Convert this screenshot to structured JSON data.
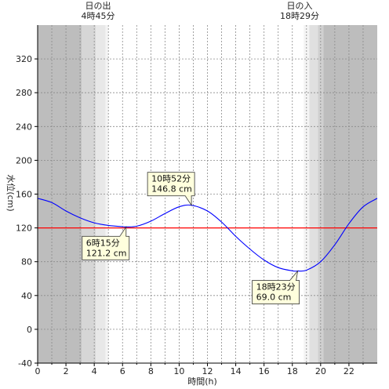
{
  "chart_data": {
    "type": "line",
    "xlabel": "時間(h)",
    "ylabel": "水位(cm)",
    "xlim": [
      0,
      24
    ],
    "ylim": [
      -40,
      360
    ],
    "xticks": [
      0,
      2,
      4,
      6,
      8,
      10,
      12,
      14,
      16,
      18,
      20,
      22
    ],
    "yticks": [
      -40,
      0,
      40,
      80,
      120,
      160,
      200,
      240,
      280,
      320
    ],
    "grid": "dotted-vertical-hourly, dotted-horizontal-at-ticks",
    "reference_line": {
      "y": 120,
      "color": "#ff0000"
    },
    "series": [
      {
        "color": "#0000ff",
        "x": [
          0,
          1,
          2,
          3,
          4,
          5,
          6,
          6.25,
          7,
          8,
          9,
          10,
          10.87,
          12,
          13,
          14,
          15,
          16,
          17,
          18,
          18.38,
          19,
          20,
          21,
          22,
          23,
          24
        ],
        "y": [
          155,
          150,
          140,
          132,
          126,
          123,
          121.5,
          121.2,
          122,
          128,
          137,
          145,
          146.8,
          140,
          127,
          110,
          95,
          82,
          73,
          69.2,
          69.0,
          70,
          80,
          100,
          125,
          145,
          155
        ]
      }
    ],
    "annotations": [
      {
        "x": 6.25,
        "y": 121.2,
        "time": "6時15分",
        "value": "121.2 cm"
      },
      {
        "x": 10.87,
        "y": 146.8,
        "time": "10時52分",
        "value": "146.8 cm"
      },
      {
        "x": 18.38,
        "y": 69.0,
        "time": "18時23分",
        "value": "69.0 cm"
      }
    ],
    "sunrise": {
      "label": "日の出",
      "time": "4時45分",
      "hour": 4.75
    },
    "sunset": {
      "label": "日の入",
      "time": "18時29分",
      "hour": 18.48
    },
    "shading": [
      {
        "from": 0,
        "to": 3.1,
        "color": "#bdbdbd"
      },
      {
        "from": 3.1,
        "to": 4.1,
        "color": "#d6d6d6"
      },
      {
        "from": 4.1,
        "to": 4.8,
        "color": "#e8e8e8"
      },
      {
        "from": 4.8,
        "to": 5.0,
        "color": "#f4f4f4"
      },
      {
        "from": 18.8,
        "to": 19.2,
        "color": "#f4f4f4"
      },
      {
        "from": 19.2,
        "to": 19.8,
        "color": "#e0e0e0"
      },
      {
        "from": 19.8,
        "to": 20.2,
        "color": "#d0d0d0"
      },
      {
        "from": 20.2,
        "to": 24,
        "color": "#bdbdbd"
      }
    ]
  }
}
